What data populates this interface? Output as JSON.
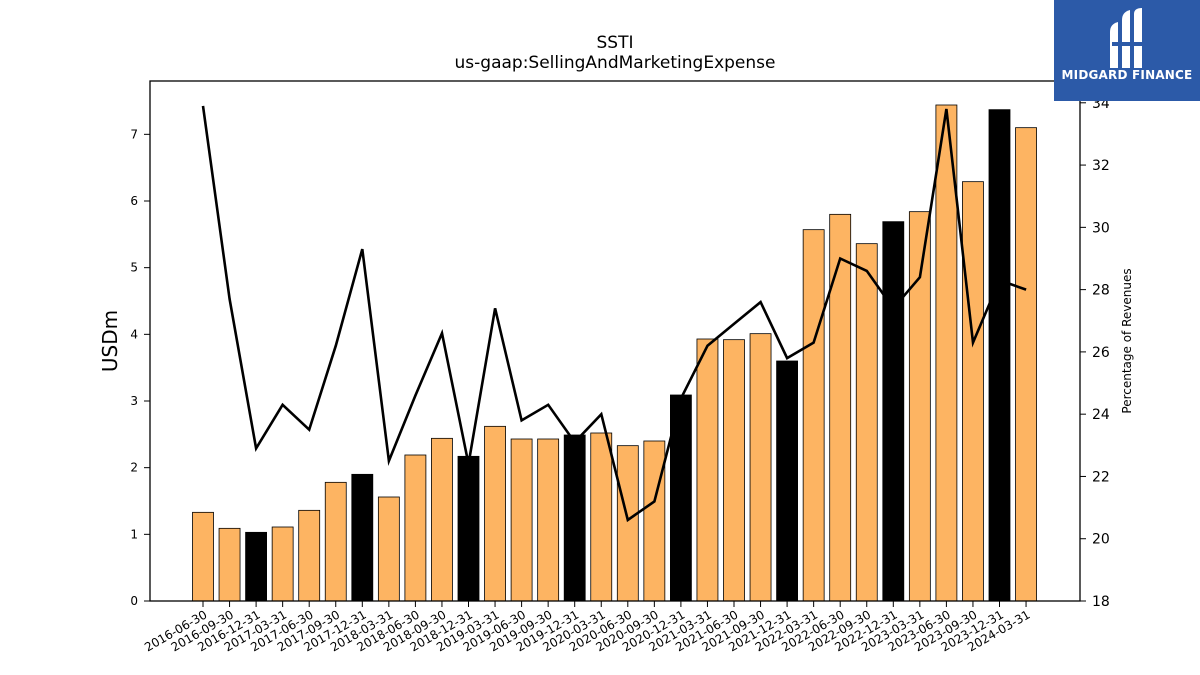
{
  "chart_data": {
    "type": "bar",
    "title": "SSTI",
    "subtitle": "us-gaap:SellingAndMarketingExpense",
    "ylabel": "USDm",
    "y2label": "Percentage of Revenues",
    "ylim": [
      0,
      7.8
    ],
    "y2lim": [
      18,
      34.7
    ],
    "yticks": [
      "0",
      "1",
      "2",
      "3",
      "4",
      "5",
      "6",
      "7"
    ],
    "y2ticks": [
      "18",
      "20",
      "22",
      "24",
      "26",
      "28",
      "30",
      "32",
      "34"
    ],
    "categories": [
      "2016-06-30",
      "2016-09-30",
      "2016-12-31",
      "2017-03-31",
      "2017-06-30",
      "2017-09-30",
      "2017-12-31",
      "2018-03-31",
      "2018-06-30",
      "2018-09-30",
      "2018-12-31",
      "2019-03-31",
      "2019-06-30",
      "2019-09-30",
      "2019-12-31",
      "2020-03-31",
      "2020-06-30",
      "2020-09-30",
      "2020-12-31",
      "2021-03-31",
      "2021-06-30",
      "2021-09-30",
      "2021-12-31",
      "2022-03-31",
      "2022-06-30",
      "2022-09-30",
      "2022-12-31",
      "2023-03-31",
      "2023-06-30",
      "2023-09-30",
      "2023-12-31",
      "2024-03-31"
    ],
    "series": [
      {
        "kind": "bar",
        "axis": "left",
        "values": [
          1.33,
          1.09,
          1.03,
          1.11,
          1.36,
          1.78,
          1.9,
          1.56,
          2.19,
          2.44,
          2.17,
          2.62,
          2.43,
          2.43,
          2.49,
          2.52,
          2.33,
          2.4,
          3.09,
          3.93,
          3.92,
          4.01,
          3.6,
          5.57,
          5.8,
          5.36,
          5.69,
          5.84,
          7.44,
          6.29,
          7.37,
          7.1
        ],
        "quarter_type": [
          "Q",
          "Q",
          "FY",
          "Q",
          "Q",
          "Q",
          "FY",
          "Q",
          "Q",
          "Q",
          "FY",
          "Q",
          "Q",
          "Q",
          "FY",
          "Q",
          "Q",
          "Q",
          "FY",
          "Q",
          "Q",
          "Q",
          "FY",
          "Q",
          "Q",
          "Q",
          "FY",
          "Q",
          "Q",
          "Q",
          "FY",
          "Q"
        ]
      },
      {
        "kind": "line",
        "axis": "right",
        "values": [
          33.9,
          27.7,
          22.9,
          24.3,
          23.5,
          26.2,
          29.3,
          22.5,
          24.6,
          26.6,
          22.4,
          27.4,
          23.8,
          24.3,
          23.1,
          24.0,
          20.6,
          21.2,
          24.5,
          26.2,
          26.9,
          27.6,
          25.8,
          26.3,
          29.0,
          28.6,
          27.4,
          28.4,
          33.8,
          26.3,
          28.3,
          28.0
        ]
      }
    ],
    "colors": {
      "bar_quarter": "#fdb462",
      "bar_annual": "#000000",
      "line": "#000000"
    },
    "grid": false
  },
  "logo": {
    "text": "MIDGARD FINANCE",
    "background": "#2c5aa8"
  }
}
